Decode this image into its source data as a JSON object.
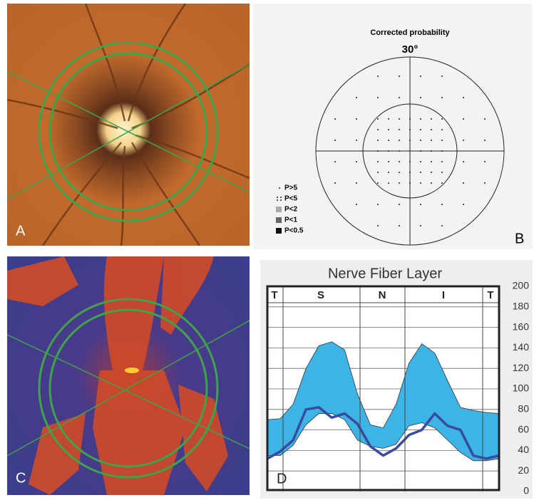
{
  "panels": {
    "a": {
      "label": "A"
    },
    "b": {
      "title": "Corrected probability",
      "subtitle": "30°",
      "legend": [
        "P>5",
        "P<5",
        "P<2",
        "P<1",
        "P<0.5"
      ],
      "label": "B"
    },
    "c": {
      "label": "C"
    }
  },
  "chart_data": {
    "type": "line",
    "title": "Nerve Fiber Layer",
    "label": "D",
    "header_labels": [
      "T",
      "S",
      "N",
      "I",
      "T"
    ],
    "x": [
      0,
      1,
      2,
      3,
      4,
      5,
      6,
      7,
      8,
      9,
      10,
      11,
      12,
      13,
      14,
      15,
      16,
      17,
      18
    ],
    "xlim": [
      0,
      18
    ],
    "band": {
      "color": "#3cb4e6",
      "upper": [
        70,
        71,
        85,
        120,
        142,
        146,
        138,
        95,
        65,
        62,
        85,
        125,
        144,
        135,
        108,
        82,
        79,
        77,
        76
      ],
      "lower": [
        35,
        35,
        45,
        65,
        76,
        76,
        70,
        50,
        44,
        42,
        46,
        64,
        67,
        62,
        50,
        38,
        30,
        30,
        32
      ]
    },
    "series": [
      {
        "color": "#3a4aa0",
        "values": [
          32,
          39,
          50,
          80,
          82,
          72,
          76,
          66,
          44,
          35,
          42,
          55,
          60,
          76,
          64,
          60,
          35,
          32,
          35
        ]
      }
    ],
    "ylim": [
      0,
      200
    ],
    "yticks": [
      0,
      20,
      40,
      60,
      80,
      100,
      120,
      140,
      160,
      180,
      200
    ],
    "grid": true
  }
}
